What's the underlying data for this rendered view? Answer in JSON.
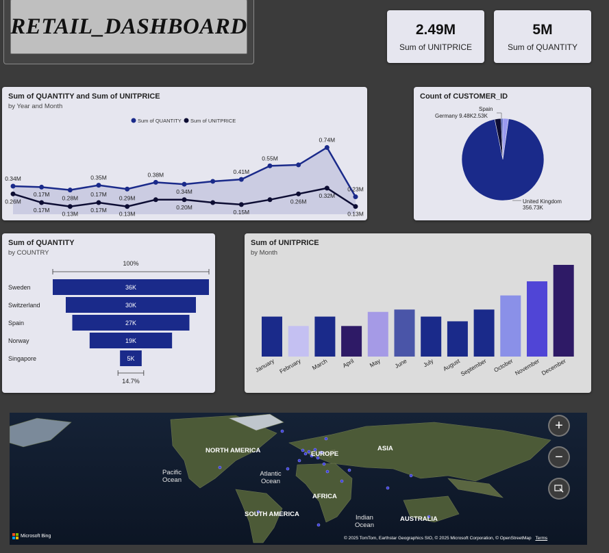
{
  "header": {
    "title": "RETAIL_DASHBOARD"
  },
  "kpis": [
    {
      "value": "2.49M",
      "label": "Sum of UNITPRICE"
    },
    {
      "value": "5M",
      "label": "Sum of QUANTITY"
    }
  ],
  "colors": {
    "navy": "#1a2a8a",
    "dark": "#0d0d33",
    "purple": "#2e1a66",
    "background": "#3b3b3b",
    "card": "#e6e6ef"
  },
  "line_card": {
    "title": "Sum of QUANTITY and Sum of UNITPRICE",
    "subtitle": "by Year and Month"
  },
  "pie_card": {
    "title": "Count of CUSTOMER_ID"
  },
  "funnel_card": {
    "title": "Sum of QUANTITY",
    "subtitle": "by COUNTRY"
  },
  "bar_card": {
    "title": "Sum of UNITPRICE",
    "subtitle": "by Month"
  },
  "map": {
    "labels": [
      "NORTH AMERICA",
      "EUROPE",
      "ASIA",
      "Pacific Ocean",
      "Atlantic Ocean",
      "AFRICA",
      "SOUTH AMERICA",
      "Indian Ocean",
      "AUSTRALIA"
    ],
    "brand": "Microsoft Bing",
    "attribution": "© 2025 TomTom, Earthstar Geographics SIO, © 2025 Microsoft Corporation, © OpenStreetMap",
    "terms": "Terms",
    "icons": [
      "zoom-in-icon",
      "zoom-out-icon",
      "select-icon"
    ]
  },
  "chart_data": [
    {
      "type": "line",
      "title": "Sum of QUANTITY and Sum of UNITPRICE",
      "subtitle": "by Year and Month",
      "legend_position": "top-center",
      "series": [
        {
          "name": "Sum of QUANTITY",
          "color": "#1a2a8a",
          "values": [
            0.34,
            0.33,
            0.3,
            0.35,
            0.31,
            0.38,
            0.36,
            0.39,
            0.41,
            0.55,
            0.56,
            0.74,
            0.23
          ],
          "labels": [
            "0.34M",
            "",
            "",
            "0.35M",
            "",
            "0.38M",
            "",
            "",
            "0.41M",
            "0.55M",
            "",
            "0.74M",
            "0.23M"
          ]
        },
        {
          "name": "Sum of UNITPRICE",
          "color": "#0d0d33",
          "values": [
            0.26,
            0.17,
            0.13,
            0.17,
            0.13,
            0.2,
            0.2,
            0.17,
            0.15,
            0.2,
            0.26,
            0.32,
            0.13
          ],
          "labels": [
            "0.26M",
            "0.17M",
            "0.13M",
            "0.17M",
            "0.13M",
            "",
            "0.20M",
            "",
            "0.15M",
            "",
            "0.26M",
            "0.32M",
            "0.13M"
          ],
          "labels_above_for": [
            "0.17M",
            "0.28M",
            "0.17M",
            "0.29M",
            "0.34M"
          ]
        }
      ],
      "extra_labels": [
        "0.17M",
        "0.28M",
        "0.17M",
        "0.29M",
        "0.34M"
      ]
    },
    {
      "type": "pie",
      "title": "Count of CUSTOMER_ID",
      "slices": [
        {
          "label": "United Kingdom",
          "value": "356.73K",
          "amount": 356.73,
          "color": "#1a2a8a"
        },
        {
          "label": "Germany",
          "value": "9.48K",
          "amount": 9.48,
          "color": "#0d0d33"
        },
        {
          "label": "Spain",
          "value": "2.53K",
          "amount": 2.53,
          "color": "#3a4ab0"
        },
        {
          "label": "",
          "value": "",
          "amount": 8.5,
          "color": "#9a9af0"
        }
      ]
    },
    {
      "type": "funnel",
      "title": "Sum of QUANTITY",
      "subtitle": "by COUNTRY",
      "top_pct": "100%",
      "bottom_pct": "14.7%",
      "categories": [
        "Sweden",
        "Switzerland",
        "Spain",
        "Norway",
        "Singapore"
      ],
      "values": [
        36,
        30,
        27,
        19,
        5
      ],
      "labels": [
        "36K",
        "30K",
        "27K",
        "19K",
        "5K"
      ]
    },
    {
      "type": "bar",
      "title": "Sum of UNITPRICE",
      "subtitle": "by Month",
      "categories": [
        "January",
        "February",
        "March",
        "April",
        "May",
        "June",
        "July",
        "August",
        "September",
        "October",
        "November",
        "December"
      ],
      "values": [
        0.17,
        0.13,
        0.17,
        0.13,
        0.19,
        0.2,
        0.17,
        0.15,
        0.2,
        0.26,
        0.32,
        0.39
      ],
      "colors": [
        "#1a2a8a",
        "#c4c0f2",
        "#1a2a8a",
        "#2e1a66",
        "#a59ae6",
        "#4a55a8",
        "#1a2a8a",
        "#1a2a8a",
        "#1a2a8a",
        "#8a90e8",
        "#5045d6",
        "#2e1a66"
      ]
    }
  ]
}
